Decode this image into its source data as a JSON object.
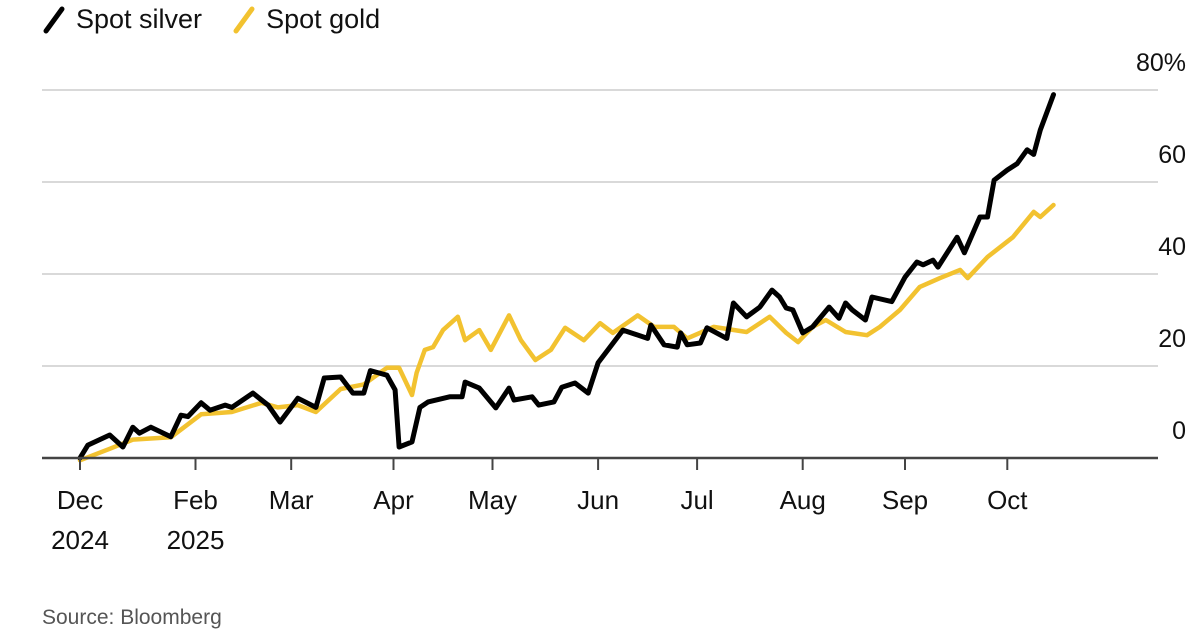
{
  "chart_data": {
    "type": "line",
    "title": "",
    "xlabel": "",
    "ylabel": "",
    "y_unit": "%",
    "ylim": [
      0,
      80
    ],
    "yticks": [
      {
        "value": 80,
        "label": "80%"
      },
      {
        "value": 60,
        "label": "60"
      },
      {
        "value": 40,
        "label": "40"
      },
      {
        "value": 20,
        "label": "20"
      },
      {
        "value": 0,
        "label": "0"
      }
    ],
    "x_unit": "days since start",
    "xlim": [
      0,
      295
    ],
    "xticks": [
      {
        "day": 0,
        "label": "Dec",
        "sublabel": "2024"
      },
      {
        "day": 35,
        "label": "Feb",
        "sublabel": "2025"
      },
      {
        "day": 64,
        "label": "Mar"
      },
      {
        "day": 95,
        "label": "Apr"
      },
      {
        "day": 125,
        "label": "May"
      },
      {
        "day": 157,
        "label": "Jun"
      },
      {
        "day": 187,
        "label": "Jul"
      },
      {
        "day": 219,
        "label": "Aug"
      },
      {
        "day": 250,
        "label": "Sep"
      },
      {
        "day": 281,
        "label": "Oct"
      }
    ],
    "grid": true,
    "legend_position": "top-left",
    "series": [
      {
        "name": "Spot gold",
        "color": "#f2c230",
        "points": [
          [
            0,
            -0.5
          ],
          [
            9,
            2
          ],
          [
            16,
            4
          ],
          [
            27.5,
            4.5
          ],
          [
            36.7,
            9.5
          ],
          [
            46,
            10
          ],
          [
            55,
            12
          ],
          [
            60,
            11
          ],
          [
            66,
            11.5
          ],
          [
            71.5,
            10
          ],
          [
            79,
            15
          ],
          [
            86,
            16
          ],
          [
            93,
            19.6
          ],
          [
            96.7,
            19.6
          ],
          [
            100.6,
            13.7
          ],
          [
            102,
            18.5
          ],
          [
            104.5,
            23.5
          ],
          [
            107,
            24.1
          ],
          [
            110,
            27.8
          ],
          [
            114.5,
            30.7
          ],
          [
            116.7,
            25.6
          ],
          [
            121,
            27.8
          ],
          [
            124.5,
            23.5
          ],
          [
            130,
            31
          ],
          [
            133.6,
            25.6
          ],
          [
            138,
            21.3
          ],
          [
            142.7,
            23.5
          ],
          [
            147,
            28.3
          ],
          [
            152.7,
            25.6
          ],
          [
            157.6,
            29.3
          ],
          [
            161.5,
            27.2
          ],
          [
            169,
            31
          ],
          [
            174,
            28.5
          ],
          [
            180,
            28.5
          ],
          [
            184,
            26
          ],
          [
            192,
            28.5
          ],
          [
            202,
            27.4
          ],
          [
            209,
            30.7
          ],
          [
            214,
            27.2
          ],
          [
            217.6,
            25.2
          ],
          [
            222,
            28.5
          ],
          [
            226,
            30
          ],
          [
            232,
            27.4
          ],
          [
            238.5,
            26.7
          ],
          [
            242.4,
            28.5
          ],
          [
            248.5,
            32.2
          ],
          [
            254.5,
            37.2
          ],
          [
            260.6,
            39.1
          ],
          [
            266.7,
            40.9
          ],
          [
            269,
            39.1
          ],
          [
            275,
            43.7
          ],
          [
            282.7,
            48
          ],
          [
            289,
            53.5
          ],
          [
            291,
            52.4
          ],
          [
            295,
            55
          ]
        ]
      },
      {
        "name": "Spot silver",
        "color": "#000000",
        "points": [
          [
            0,
            0
          ],
          [
            2.4,
            2.8
          ],
          [
            9,
            5
          ],
          [
            13,
            2.4
          ],
          [
            16,
            6.7
          ],
          [
            18,
            5.4
          ],
          [
            21.5,
            6.7
          ],
          [
            27.5,
            4.6
          ],
          [
            30.6,
            9.3
          ],
          [
            32.7,
            9
          ],
          [
            36.7,
            12
          ],
          [
            39.4,
            10.4
          ],
          [
            44,
            11.5
          ],
          [
            46,
            11
          ],
          [
            52.4,
            14.1
          ],
          [
            55,
            12.6
          ],
          [
            57,
            11.5
          ],
          [
            60.6,
            7.8
          ],
          [
            66,
            13
          ],
          [
            71.5,
            11
          ],
          [
            74,
            17.4
          ],
          [
            79,
            17.6
          ],
          [
            82.7,
            14.1
          ],
          [
            86,
            14.1
          ],
          [
            88,
            19
          ],
          [
            93,
            18
          ],
          [
            95.5,
            14.8
          ],
          [
            96.7,
            2.4
          ],
          [
            100.6,
            3.5
          ],
          [
            103,
            11
          ],
          [
            105.5,
            12.2
          ],
          [
            112,
            13.3
          ],
          [
            115.8,
            13.3
          ],
          [
            116.7,
            16.5
          ],
          [
            121,
            15.2
          ],
          [
            126,
            10.9
          ],
          [
            130,
            15.2
          ],
          [
            131.5,
            12.6
          ],
          [
            137,
            13.3
          ],
          [
            139,
            11.5
          ],
          [
            143.6,
            12.2
          ],
          [
            146,
            15.4
          ],
          [
            150,
            16.3
          ],
          [
            154,
            14.1
          ],
          [
            157,
            20.7
          ],
          [
            160.6,
            24.1
          ],
          [
            164.5,
            27.8
          ],
          [
            172,
            26
          ],
          [
            173,
            28.9
          ],
          [
            177,
            24.6
          ],
          [
            181,
            24.1
          ],
          [
            182,
            27.2
          ],
          [
            184,
            24.6
          ],
          [
            188,
            25
          ],
          [
            190,
            28.3
          ],
          [
            196,
            26
          ],
          [
            198,
            33.7
          ],
          [
            202,
            30.7
          ],
          [
            206,
            32.8
          ],
          [
            209.7,
            36.5
          ],
          [
            212,
            35
          ],
          [
            214,
            32.6
          ],
          [
            216,
            32.2
          ],
          [
            219,
            27.2
          ],
          [
            222,
            28.5
          ],
          [
            227,
            32.8
          ],
          [
            230,
            30.4
          ],
          [
            232,
            33.7
          ],
          [
            234,
            32.2
          ],
          [
            238,
            30
          ],
          [
            240,
            35
          ],
          [
            246,
            34
          ],
          [
            250,
            39.3
          ],
          [
            253.6,
            42.6
          ],
          [
            255.5,
            42
          ],
          [
            258.5,
            43
          ],
          [
            260,
            41.5
          ],
          [
            265.8,
            48
          ],
          [
            268,
            44.6
          ],
          [
            272.7,
            52.4
          ],
          [
            275,
            52.4
          ],
          [
            277,
            60.4
          ],
          [
            281,
            62.6
          ],
          [
            284,
            64
          ],
          [
            287,
            67
          ],
          [
            289,
            66
          ],
          [
            291,
            71.3
          ],
          [
            295,
            79
          ]
        ]
      }
    ],
    "legend": [
      "Spot silver",
      "Spot gold"
    ],
    "source": "Source: Bloomberg"
  }
}
